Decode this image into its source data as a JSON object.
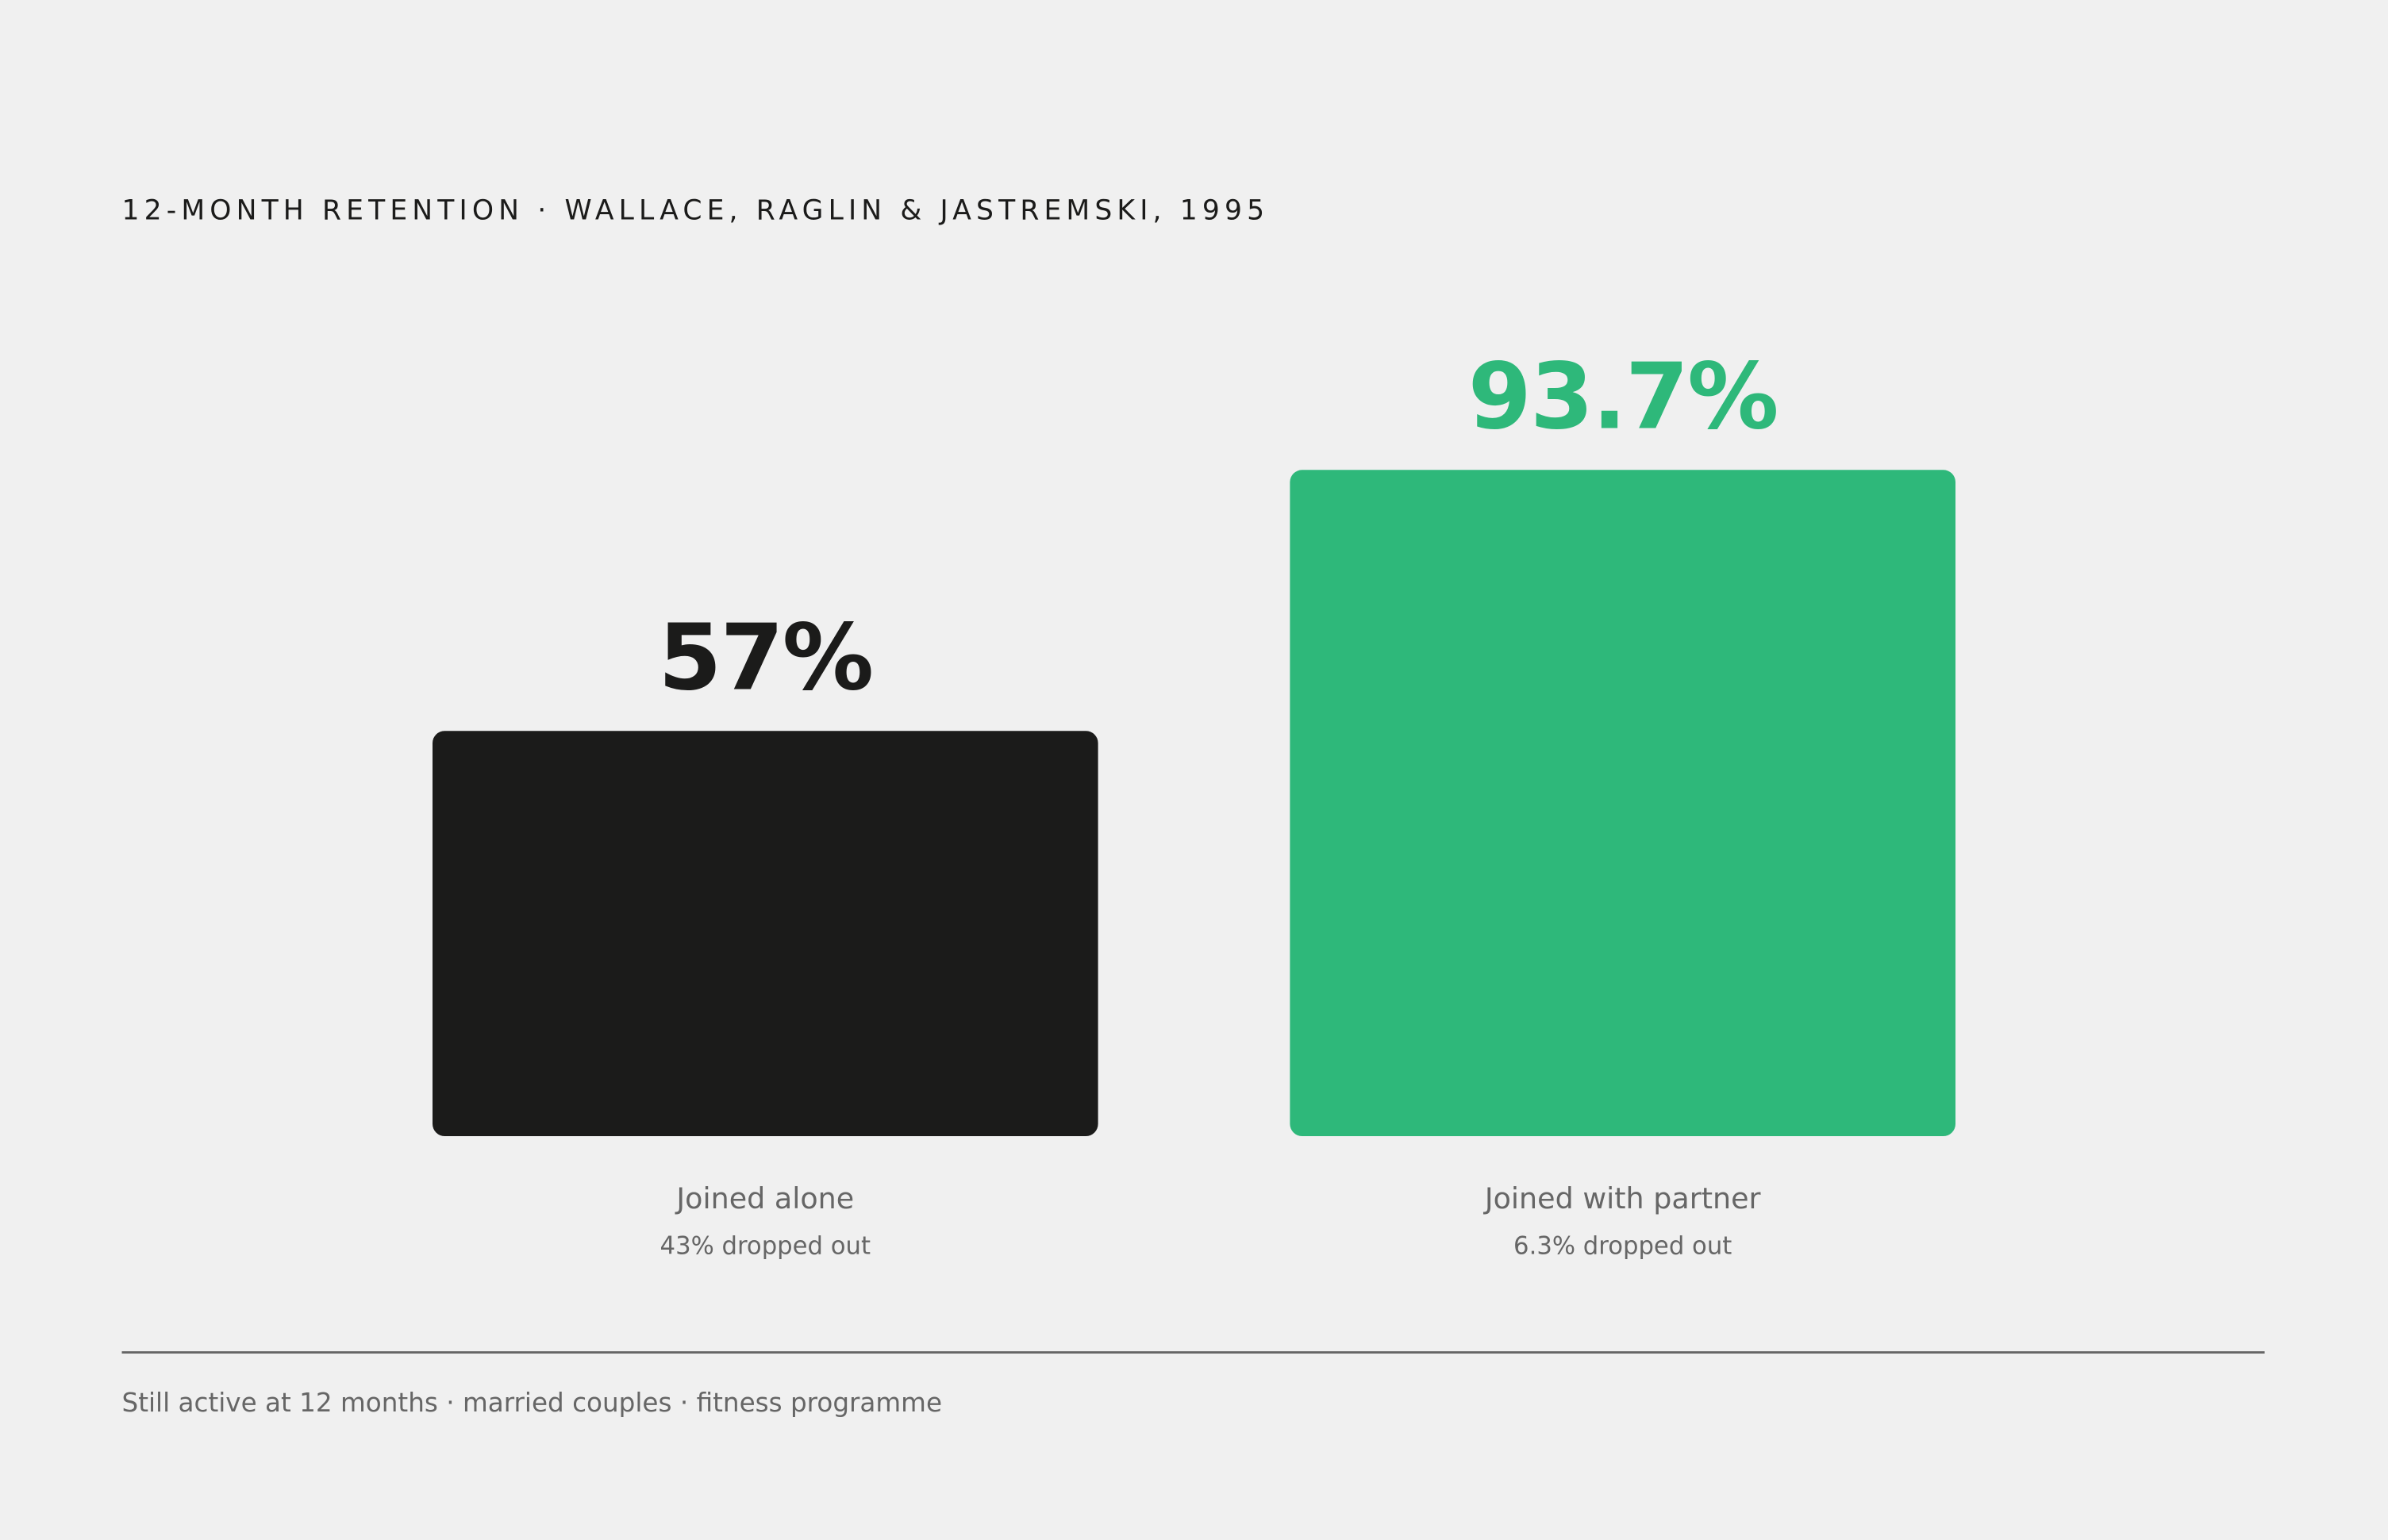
{
  "chart_data": {
    "type": "bar",
    "title": "12-MONTH RETENTION · WALLACE, RAGLIN & JASTREMSKI, 1995",
    "categories": [
      "Joined alone",
      "Joined with partner"
    ],
    "values": [
      57,
      93.7
    ],
    "value_labels": [
      "57%",
      "93.7%"
    ],
    "notes": [
      "43% dropped out",
      "6.3% dropped out"
    ],
    "colors": [
      "#1b1b1a",
      "#2eb87a"
    ],
    "ylim": [
      0,
      100
    ],
    "caption": "Still active at 12 months · married couples · fitness programme"
  }
}
